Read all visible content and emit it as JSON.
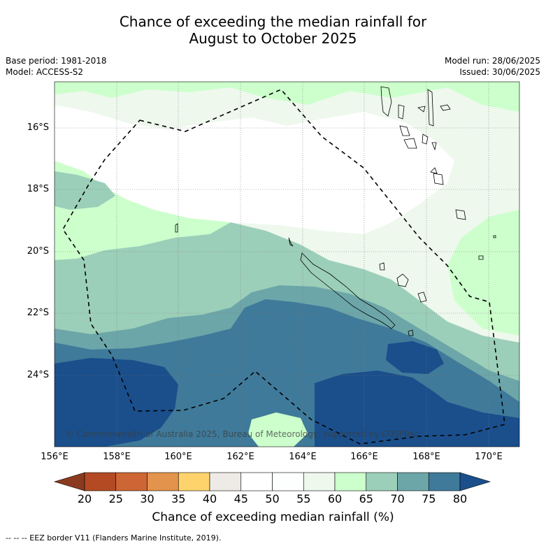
{
  "title_line1": "Chance of exceeding the median rainfall for",
  "title_line2": "August to October 2025",
  "meta": {
    "base_period": "Base period: 1981-2018",
    "model": "Model: ACCESS-S2",
    "model_run": "Model run: 28/06/2025",
    "issued": "Issued: 30/06/2025"
  },
  "map": {
    "lat_labels": [
      "16°S",
      "18°S",
      "20°S",
      "22°S",
      "24°S"
    ],
    "lon_labels": [
      "156°E",
      "158°E",
      "160°E",
      "162°E",
      "164°E",
      "166°E",
      "168°E",
      "170°E"
    ],
    "copyright": "© Commonwealth of Australia 2025, Bureau of Meteorology, supported by COSPPac",
    "eez_color": "#000000"
  },
  "colorbar": {
    "labels": [
      "20",
      "25",
      "30",
      "35",
      "40",
      "45",
      "50",
      "55",
      "60",
      "65",
      "70",
      "75",
      "80"
    ],
    "colors": [
      "#8b3a1f",
      "#b34a24",
      "#cd6634",
      "#e3934b",
      "#ffd36c",
      "#eeebe6",
      "#ffffff",
      "#fdfefe",
      "#eef8ed",
      "#ccffcc",
      "#9ccfb9",
      "#6ca6a9",
      "#3f7a9a",
      "#1a4f8c"
    ],
    "title": "Chance of exceeding median rainfall (%)"
  },
  "footnote": "--  --  -- EEZ border V11 (Flanders Marine Institute, 2019)."
}
